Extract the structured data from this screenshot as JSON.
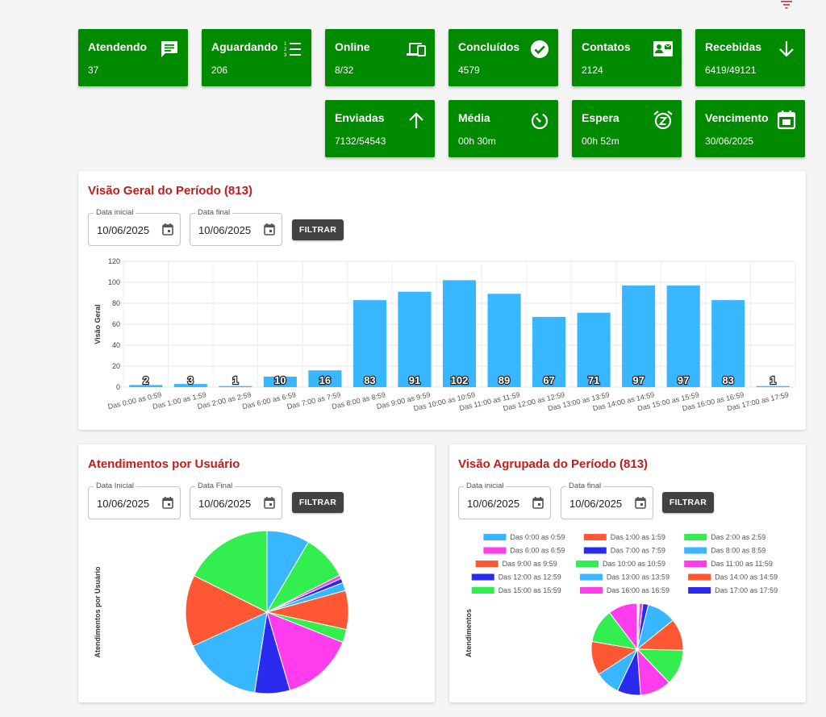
{
  "cards": [
    {
      "title": "Atendendo",
      "value": "37",
      "icon": "chat-icon"
    },
    {
      "title": "Aguardando",
      "value": "206",
      "icon": "list-numbered-icon"
    },
    {
      "title": "Online",
      "value": "8/32",
      "icon": "devices-icon"
    },
    {
      "title": "Concluídos",
      "value": "4579",
      "icon": "check-circle-icon"
    },
    {
      "title": "Contatos",
      "value": "2124",
      "icon": "contact-card-icon"
    },
    {
      "title": "Recebidas",
      "value": "6419/49121",
      "icon": "arrow-down-icon"
    },
    {
      "title": "Enviadas",
      "value": "7132/54543",
      "icon": "arrow-up-icon"
    },
    {
      "title": "Média",
      "value": "00h 30m",
      "icon": "timer-icon"
    },
    {
      "title": "Espera",
      "value": "00h 52m",
      "icon": "snooze-alarm-icon"
    },
    {
      "title": "Vencimento",
      "value": "30/06/2025",
      "icon": "calendar-icon"
    }
  ],
  "colors": {
    "card_bg": "#008a00",
    "title_red": "#c41c1c",
    "bar_blue": "#38b6ff"
  },
  "overview": {
    "title": "Visão Geral do Período (813)",
    "start_label": "Data inicial",
    "start_value": "10/06/2025",
    "end_label": "Data final",
    "end_value": "10/06/2025",
    "filter_label": "FILTRAR"
  },
  "users_panel": {
    "title": "Atendimentos por Usuário",
    "start_label": "Data Inicial",
    "start_value": "10/06/2025",
    "end_label": "Data Final",
    "end_value": "10/06/2025",
    "filter_label": "FILTRAR"
  },
  "grouped_panel": {
    "title": "Visão Agrupada do Período (813)",
    "start_label": "Data inicial",
    "start_value": "10/06/2025",
    "end_label": "Data final",
    "end_value": "10/06/2025",
    "filter_label": "FILTRAR"
  },
  "chart_data": [
    {
      "type": "bar",
      "ylabel": "Visão Geral",
      "ylim": [
        0,
        120
      ],
      "yticks": [
        0,
        20,
        40,
        60,
        80,
        100,
        120
      ],
      "grid": true,
      "categories": [
        "Das 0:00 as 0:59",
        "Das 1:00 as 1:59",
        "Das 2:00 as 2:59",
        "Das 6:00 as 6:59",
        "Das 7:00 as 7:59",
        "Das 8:00 as 8:59",
        "Das 9:00 as 9:59",
        "Das 10:00 as 10:59",
        "Das 11:00 as 11:59",
        "Das 12:00 as 12:59",
        "Das 13:00 as 13:59",
        "Das 14:00 as 14:59",
        "Das 15:00 as 15:59",
        "Das 16:00 as 16:59",
        "Das 17:00 as 17:59"
      ],
      "values": [
        2,
        3,
        1,
        10,
        16,
        83,
        91,
        102,
        89,
        67,
        71,
        97,
        97,
        83,
        1
      ],
      "color": "#38b6ff"
    },
    {
      "type": "pie",
      "ylabel": "Atendimentos por Usuário",
      "values": [
        8.5,
        9.0,
        0.7,
        0.9,
        1.6,
        7.7,
        2.6,
        14.4,
        7.0,
        15.7,
        14.2,
        17.6
      ],
      "colors": [
        "#38b6ff",
        "#33ee4f",
        "#ff3ded",
        "#2b2bef",
        "#38b6ff",
        "#ff5733",
        "#33ee4f",
        "#ff3ded",
        "#2b2bef",
        "#38b6ff",
        "#ff5733",
        "#33ee4f"
      ]
    },
    {
      "type": "pie",
      "ylabel": "Atendimentos",
      "legend_position": "top",
      "categories": [
        "Das 0:00 as 0:59",
        "Das 1:00 as 1:59",
        "Das 2:00 as 2:59",
        "Das 6:00 as 6:59",
        "Das 7:00 as 7:59",
        "Das 8:00 as 8:59",
        "Das 9:00 as 9:59",
        "Das 10:00 as 10:59",
        "Das 11:00 as 11:59",
        "Das 12:00 as 12:59",
        "Das 13:00 as 13:59",
        "Das 14:00 as 14:59",
        "Das 15:00 as 15:59",
        "Das 16:00 as 16:59",
        "Das 17:00 as 17:59"
      ],
      "values": [
        2,
        3,
        1,
        10,
        16,
        83,
        91,
        102,
        89,
        67,
        71,
        97,
        97,
        83,
        1
      ],
      "colors": [
        "#38b6ff",
        "#ff5733",
        "#33ee4f",
        "#ff3ded",
        "#2b2bef",
        "#38b6ff",
        "#ff5733",
        "#33ee4f",
        "#ff3ded",
        "#2b2bef",
        "#38b6ff",
        "#ff5733",
        "#33ee4f",
        "#ff3ded",
        "#2b2bef"
      ]
    }
  ]
}
